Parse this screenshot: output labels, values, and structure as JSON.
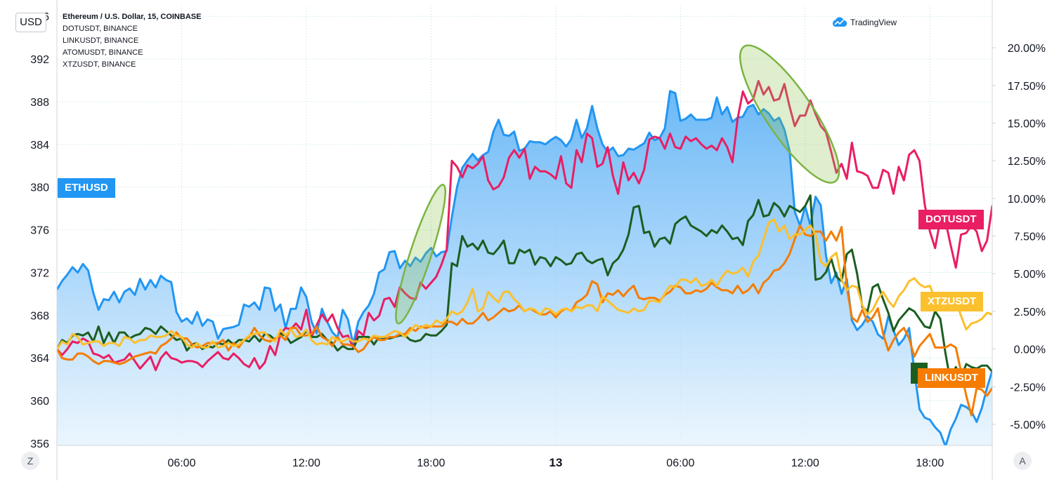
{
  "header": {
    "currency_button": "USD",
    "legend": [
      "Ethereum / U.S. Dollar, 15, COINBASE",
      "DOTUSDT, BINANCE",
      "LINKUSDT, BINANCE",
      "ATOMUSDT, BINANCE",
      "XTZUSDT, BINANCE"
    ],
    "brand": "TradingView"
  },
  "footer": {
    "left_button": "Z",
    "right_button": "A"
  },
  "colors": {
    "ETHUSD": "#2196f3",
    "DOTUSDT": "#e91e63",
    "LINKUSDT": "#1b5e20",
    "ATOMUSDT": "#f57c00",
    "XTZUSDT": "#fbc02d",
    "grid": "#b2dfdb",
    "highlight": "#7cb342"
  },
  "chart_data": {
    "type": "area",
    "x_tick_labels": [
      "06:00",
      "12:00",
      "18:00",
      "13",
      "06:00",
      "12:00",
      "18:00"
    ],
    "left_axis": {
      "label": "USD",
      "ticks": [
        356,
        360,
        364,
        368,
        372,
        376,
        380,
        384,
        388,
        392,
        396
      ],
      "range": [
        355.8,
        397.0
      ]
    },
    "right_axis": {
      "ticks": [
        "20.00%",
        "17.50%",
        "15.00%",
        "12.50%",
        "10.00%",
        "7.50%",
        "5.00%",
        "2.50%",
        "0.00%",
        "-2.50%",
        "-5.00%"
      ],
      "range": [
        -6.4,
        22.8
      ]
    },
    "grid": true,
    "series": [
      {
        "name": "ETHUSD",
        "type": "area",
        "axis": "left",
        "unit": "USD",
        "values": [
          370.4,
          371.2,
          371.8,
          372.5,
          372.0,
          372.8,
          372.2,
          370.1,
          368.5,
          369.5,
          369.4,
          370.2,
          369.2,
          370.2,
          370.5,
          369.9,
          371.4,
          370.4,
          371.3,
          370.6,
          371.7,
          371.3,
          371.1,
          368.3,
          367.4,
          367.7,
          367.2,
          368.3,
          367.0,
          367.6,
          367.4,
          365.8,
          366.7,
          366.8,
          366.9,
          367.1,
          369.0,
          368.8,
          369.2,
          368.5,
          370.6,
          370.5,
          368.4,
          369.0,
          366.8,
          368.6,
          368.6,
          370.6,
          369.7,
          367.4,
          366.3,
          368.6,
          367.4,
          366.4,
          365.9,
          368.5,
          367.6,
          365.3,
          367.4,
          368.3,
          368.9,
          370.0,
          372.0,
          372.3,
          373.9,
          374.0,
          372.4,
          373.1,
          372.6,
          373.4,
          373.0,
          373.8,
          374.3,
          373.5,
          373.9,
          374.0,
          377.2,
          380.0,
          381.8,
          382.5,
          383.1,
          382.5,
          383.0,
          383.3,
          385.2,
          386.3,
          384.9,
          384.8,
          385.2,
          383.4,
          383.6,
          384.3,
          384.2,
          384.2,
          384.0,
          384.4,
          384.7,
          384.4,
          383.8,
          384.5,
          386.3,
          384.6,
          385.5,
          387.6,
          385.5,
          384.0,
          383.3,
          383.7,
          382.9,
          383.0,
          383.6,
          383.5,
          383.8,
          384.1,
          385.1,
          384.4,
          384.6,
          385.5,
          389.0,
          388.8,
          386.2,
          386.4,
          386.8,
          386.3,
          386.3,
          386.3,
          386.5,
          388.4,
          386.8,
          387.5,
          386.1,
          386.5,
          386.6,
          387.5,
          387.7,
          386.8,
          387.3,
          386.9,
          386.2,
          386.5,
          385.4,
          383.4,
          377.7,
          376.4,
          378.2,
          376.4,
          379.1,
          378.3,
          373.6,
          371.0,
          372.0,
          370.0,
          371.4,
          367.5,
          366.6,
          367.1,
          367.9,
          367.4,
          366.2,
          365.8,
          367.9,
          366.6,
          365.2,
          365.8,
          366.8,
          362.8,
          359.2,
          358.4,
          358.2,
          357.5,
          357.0,
          355.7,
          357.3,
          358.3,
          359.6,
          359.4,
          359.0,
          358.0,
          359.3,
          361.2,
          362.8
        ]
      },
      {
        "name": "DOTUSDT",
        "type": "line",
        "axis": "right",
        "unit": "%",
        "values": [
          0.0,
          -0.4,
          0.0,
          0.5,
          0.4,
          0.7,
          0.5,
          -0.3,
          -0.4,
          -0.6,
          -0.4,
          -0.9,
          -0.8,
          -0.7,
          -0.3,
          -0.8,
          -1.3,
          -0.9,
          -0.5,
          -1.4,
          -0.6,
          -0.2,
          -0.6,
          -0.7,
          -0.9,
          -0.8,
          -0.8,
          -0.9,
          -1.2,
          -0.8,
          -0.5,
          -0.2,
          -0.6,
          -0.7,
          -0.3,
          -0.6,
          -1.0,
          -1.2,
          -0.6,
          -1.3,
          -0.9,
          0.2,
          -0.4,
          1.0,
          1.4,
          1.3,
          1.7,
          1.3,
          2.6,
          0.8,
          1.6,
          2.3,
          1.8,
          2.3,
          1.4,
          0.8,
          0.9,
          0.1,
          1.2,
          0.9,
          2.4,
          1.9,
          2.2,
          3.3,
          3.4,
          2.8,
          4.1,
          3.7,
          3.4,
          3.3,
          4.4,
          4.0,
          4.4,
          4.8,
          5.6,
          6.6,
          12.5,
          12.1,
          11.4,
          12.2,
          12.0,
          12.3,
          12.8,
          11.2,
          10.6,
          10.8,
          11.4,
          12.7,
          13.2,
          12.7,
          13.3,
          11.3,
          12.1,
          11.8,
          11.8,
          11.6,
          11.3,
          12.8,
          11.0,
          10.7,
          13.2,
          12.4,
          14.3,
          14.0,
          12.1,
          12.3,
          13.4,
          11.5,
          10.3,
          12.4,
          11.2,
          11.7,
          11.0,
          11.9,
          13.9,
          14.1,
          14.0,
          13.3,
          14.3,
          13.4,
          13.3,
          14.1,
          13.8,
          14.0,
          13.6,
          13.3,
          13.5,
          13.2,
          14.0,
          13.4,
          12.4,
          15.3,
          17.1,
          16.3,
          16.6,
          17.8,
          16.9,
          17.4,
          16.5,
          16.6,
          17.6,
          16.1,
          14.8,
          15.5,
          15.5,
          16.5,
          15.6,
          14.8,
          14.4,
          13.1,
          11.7,
          12.3,
          11.3,
          13.7,
          11.8,
          11.7,
          11.5,
          10.7,
          10.7,
          11.9,
          11.7,
          10.3,
          12.1,
          11.2,
          12.9,
          13.2,
          12.5,
          9.6,
          7.8,
          6.7,
          8.6,
          8.5,
          6.9,
          5.4,
          7.6,
          7.7,
          8.2,
          7.8,
          6.5,
          7.2,
          9.5,
          8.3,
          8.8,
          8.9
        ]
      },
      {
        "name": "LINKUSDT",
        "type": "line",
        "axis": "right",
        "unit": "%",
        "values": [
          0.0,
          0.6,
          0.4,
          0.9,
          1.0,
          0.9,
          1.1,
          0.5,
          1.5,
          0.4,
          1.1,
          0.4,
          1.1,
          1.1,
          0.7,
          0.9,
          1.0,
          1.4,
          1.3,
          1.0,
          1.5,
          1.2,
          0.9,
          0.6,
          0.7,
          -0.1,
          0.3,
          0.4,
          0.0,
          0.2,
          0.1,
          0.4,
          0.3,
          0.6,
          0.3,
          0.6,
          0.6,
          0.5,
          0.9,
          0.5,
          1.0,
          0.9,
          0.6,
          1.0,
          0.9,
          0.4,
          0.6,
          0.8,
          1.2,
          0.8,
          0.8,
          1.0,
          0.6,
          0.4,
          -0.1,
          0.2,
          0.0,
          0.0,
          0.8,
          0.8,
          0.8,
          0.3,
          0.8,
          0.7,
          0.7,
          0.8,
          0.9,
          0.9,
          0.6,
          0.5,
          0.6,
          1.0,
          0.9,
          0.9,
          1.2,
          1.6,
          5.7,
          5.5,
          7.5,
          6.8,
          7.0,
          6.6,
          7.2,
          6.4,
          6.3,
          6.7,
          7.2,
          5.7,
          5.7,
          6.6,
          6.4,
          6.6,
          5.6,
          6.1,
          6.0,
          5.5,
          6.1,
          5.9,
          5.6,
          5.7,
          6.3,
          6.4,
          5.9,
          5.7,
          5.9,
          6.0,
          4.9,
          5.7,
          6.0,
          6.6,
          7.6,
          9.4,
          9.5,
          7.7,
          7.8,
          6.8,
          7.3,
          7.4,
          7.0,
          8.3,
          8.6,
          8.8,
          8.2,
          8.0,
          7.8,
          7.5,
          7.9,
          7.7,
          8.2,
          7.8,
          7.3,
          7.4,
          6.9,
          8.5,
          8.9,
          9.9,
          8.8,
          8.9,
          9.7,
          9.4,
          8.8,
          9.5,
          9.3,
          9.1,
          9.5,
          10.2,
          4.6,
          4.7,
          5.1,
          6.0,
          4.8,
          4.5,
          6.3,
          6.6,
          5.0,
          2.8,
          2.5,
          4.1,
          4.3,
          3.3,
          2.4,
          1.2,
          1.9,
          2.3,
          2.7,
          2.5,
          2.0,
          1.5,
          1.4,
          2.5,
          2.0,
          -0.3,
          -2.2,
          -1.2,
          -1.9,
          -1.0,
          -1.2,
          -1.3,
          -1.1,
          -1.1,
          -1.5,
          -1.2,
          -0.9,
          -1.0,
          -1.2,
          -0.7
        ]
      },
      {
        "name": "ATOMUSDT",
        "type": "line",
        "axis": "right",
        "unit": "%",
        "values": [
          0.0,
          -0.6,
          -0.7,
          -0.7,
          -0.3,
          -0.3,
          -0.5,
          -0.8,
          -1.0,
          -0.8,
          -0.8,
          -0.9,
          -1.0,
          -0.9,
          -0.7,
          -0.5,
          -0.4,
          -0.3,
          -0.2,
          -0.3,
          0.2,
          0.4,
          0.7,
          1.1,
          0.7,
          0.7,
          0.3,
          0.1,
          0.2,
          0.4,
          0.4,
          0.4,
          0.6,
          -0.1,
          0.4,
          0.1,
          0.6,
          0.8,
          1.4,
          0.9,
          0.6,
          0.5,
          0.7,
          0.9,
          0.6,
          1.4,
          1.4,
          0.9,
          0.9,
          1.0,
          1.5,
          0.8,
          0.6,
          0.2,
          0.8,
          0.3,
          0.3,
          0.2,
          -0.2,
          0.0,
          0.5,
          0.8,
          0.6,
          0.6,
          0.8,
          0.8,
          1.0,
          1.0,
          1.4,
          1.2,
          1.5,
          1.4,
          1.5,
          1.5,
          1.5,
          1.8,
          1.8,
          1.6,
          2.0,
          1.7,
          1.7,
          2.0,
          2.4,
          1.9,
          2.1,
          2.4,
          2.7,
          2.5,
          2.6,
          2.9,
          2.5,
          2.7,
          2.5,
          2.3,
          2.3,
          2.5,
          2.1,
          2.5,
          2.7,
          2.5,
          3.1,
          3.3,
          3.6,
          4.5,
          4.3,
          3.1,
          3.7,
          3.6,
          3.9,
          3.5,
          3.9,
          4.2,
          3.4,
          3.3,
          3.4,
          3.4,
          3.2,
          3.6,
          3.8,
          4.2,
          4.1,
          3.7,
          3.7,
          3.9,
          3.8,
          4.0,
          4.4,
          4.1,
          3.9,
          3.9,
          3.7,
          4.2,
          3.7,
          3.9,
          4.3,
          3.7,
          4.4,
          4.7,
          5.2,
          5.3,
          5.7,
          6.3,
          7.3,
          8.2,
          7.6,
          7.5,
          7.8,
          7.8,
          7.2,
          7.8,
          7.2,
          8.1,
          4.1,
          2.1,
          1.8,
          2.6,
          1.8,
          2.1,
          2.7,
          1.0,
          -0.1,
          0.6,
          1.1,
          1.4,
          0.7,
          -0.5,
          0.2,
          0.6,
          1.0,
          0.1,
          0.1,
          0.1,
          0.3,
          0.1,
          -1.5,
          -3.1,
          -4.4,
          -2.6,
          -2.7,
          -3.1,
          -2.6,
          -2.3,
          -2.5,
          -2.3,
          -2.7,
          -2.3,
          -2.1,
          -2.1,
          -2.0
        ]
      },
      {
        "name": "XTZUSDT",
        "type": "line",
        "axis": "right",
        "unit": "%",
        "values": [
          0.0,
          0.5,
          0.3,
          1.0,
          0.8,
          0.3,
          0.4,
          0.5,
          0.5,
          0.2,
          0.4,
          0.4,
          0.2,
          0.8,
          0.7,
          0.4,
          0.6,
          0.6,
          0.9,
          0.8,
          0.8,
          0.9,
          1.2,
          0.9,
          0.8,
          0.3,
          0.1,
          0.4,
          0.1,
          0.1,
          0.5,
          0.1,
          0.2,
          0.4,
          0.2,
          0.3,
          0.6,
          0.9,
          1.0,
          1.1,
          1.1,
          0.7,
          0.5,
          1.3,
          0.9,
          1.3,
          0.8,
          0.9,
          1.3,
          0.6,
          0.3,
          0.4,
          0.3,
          0.8,
          0.6,
          0.5,
          0.7,
          0.5,
          0.5,
          0.7,
          0.6,
          0.9,
          0.8,
          0.8,
          1.0,
          1.2,
          1.1,
          0.8,
          1.2,
          1.6,
          1.4,
          1.6,
          1.5,
          1.9,
          1.7,
          2.0,
          2.5,
          2.3,
          2.5,
          3.1,
          4.0,
          2.5,
          2.7,
          3.8,
          3.4,
          3.1,
          3.8,
          3.8,
          3.3,
          3.0,
          2.5,
          2.7,
          2.6,
          2.3,
          2.7,
          2.6,
          2.3,
          2.6,
          2.7,
          2.5,
          2.8,
          2.7,
          2.9,
          2.9,
          2.5,
          3.5,
          3.2,
          2.9,
          2.6,
          2.5,
          2.4,
          2.7,
          2.5,
          2.6,
          3.2,
          3.2,
          3.1,
          3.7,
          4.2,
          4.1,
          4.6,
          4.6,
          4.4,
          4.7,
          4.2,
          4.3,
          4.6,
          4.2,
          4.8,
          5.2,
          5.0,
          5.1,
          5.4,
          4.8,
          5.8,
          6.2,
          7.3,
          8.4,
          8.6,
          7.8,
          8.2,
          7.3,
          7.6,
          7.6,
          7.9,
          8.2,
          7.6,
          5.8,
          5.5,
          6.1,
          6.4,
          4.6,
          3.9,
          4.2,
          4.1,
          2.9,
          2.3,
          2.6,
          3.3,
          3.8,
          3.2,
          2.8,
          3.5,
          3.9,
          4.5,
          4.7,
          4.3,
          4.1,
          4.2,
          3.3,
          3.0,
          2.7,
          2.6,
          3.2,
          2.2,
          1.3,
          1.7,
          1.8,
          2.0,
          2.4,
          2.3,
          2.0,
          2.4,
          2.1,
          2.3,
          2.2,
          2.5
        ]
      }
    ],
    "series_tags": [
      "ETHUSD",
      "DOTUSDT",
      "XTZUSDT",
      "LINKUSDT"
    ],
    "annotations": [
      {
        "shape": "ellipse",
        "note": "highlight around DOT price spike near 18:00 of day 12"
      },
      {
        "shape": "ellipse",
        "note": "highlight around DOT/ETH top near 06:00–11:00 of day 13"
      }
    ]
  }
}
